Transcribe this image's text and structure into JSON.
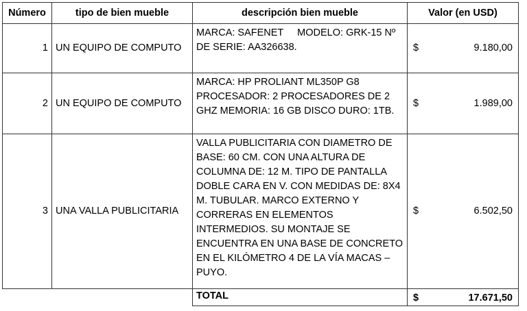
{
  "headers": [
    "Número",
    "tipo de bien mueble",
    "descripción bien mueble",
    "Valor (en USD)"
  ],
  "rows": [
    {
      "numero": "1",
      "tipo": "UN EQUIPO DE COMPUTO",
      "descripcion": "MARCA: SAFENET     MODELO: GRK-15 Nº DE SERIE: AA326638.",
      "currency": "$",
      "valor": "9.180,00"
    },
    {
      "numero": "2",
      "tipo": "UN EQUIPO DE COMPUTO",
      "descripcion": "MARCA: HP PROLIANT ML350P G8 PROCESADOR: 2 PROCESADORES DE 2 GHZ MEMORIA: 16 GB   DISCO DURO: 1TB.",
      "currency": "$",
      "valor": "1.989,00"
    },
    {
      "numero": "3",
      "tipo": "UNA VALLA PUBLICITARIA",
      "descripcion": "VALLA PUBLICITARIA CON DIAMETRO DE BASE: 60 CM.  CON UNA ALTURA DE COLUMNA DE: 12 M. TIPO DE PANTALLA DOBLE CARA EN V. CON MEDIDAS DE: 8X4 M. TUBULAR. MARCO EXTERNO Y CORRERAS EN ELEMENTOS INTERMEDIOS. SU MONTAJE SE ENCUENTRA EN UNA BASE DE CONCRETO EN EL KILÓMETRO 4 DE LA VÍA MACAS – PUYO.",
      "currency": "$",
      "valor": "6.502,50"
    }
  ],
  "total": {
    "label": "TOTAL",
    "currency": "$",
    "valor": "17.671,50"
  }
}
